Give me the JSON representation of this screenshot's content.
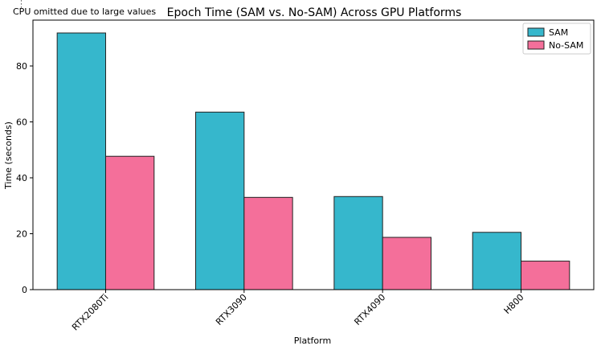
{
  "annotation": "CPU omitted due to large values",
  "chart_data": {
    "type": "bar",
    "title": "Epoch Time (SAM vs. No-SAM) Across GPU Platforms",
    "xlabel": "Platform",
    "ylabel": "Time (seconds)",
    "categories": [
      "RTX2080Ti",
      "RTX3090",
      "RTX4090",
      "H800"
    ],
    "series": [
      {
        "name": "SAM",
        "values": [
          91.8,
          63.5,
          33.3,
          20.5
        ],
        "color": "#36b7cc"
      },
      {
        "name": "No-SAM",
        "values": [
          47.7,
          33.0,
          18.7,
          10.2
        ],
        "color": "#f46f9a"
      }
    ],
    "ylim": [
      0,
      96.4
    ],
    "yticks": [
      0,
      20,
      40,
      60,
      80
    ],
    "legend": "top-right",
    "grid": false
  }
}
